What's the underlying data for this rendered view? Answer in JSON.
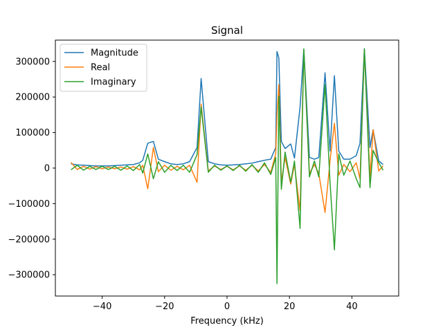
{
  "chart_data": {
    "type": "line",
    "title": "Signal",
    "xlabel": "Frequency (kHz)",
    "ylabel": "",
    "xlim": [
      -55,
      55
    ],
    "ylim": [
      -360000,
      360000
    ],
    "x_ticks": [
      -40,
      -20,
      0,
      20,
      40
    ],
    "y_ticks": [
      -300000,
      -200000,
      -100000,
      0,
      100000,
      200000,
      300000
    ],
    "x_tick_labels": [
      "−40",
      "−20",
      "0",
      "20",
      "40"
    ],
    "y_tick_labels": [
      "−300000",
      "−200000",
      "−100000",
      "0",
      "100000",
      "200000",
      "300000"
    ],
    "grid": false,
    "legend_position": "top-left",
    "series": [
      {
        "name": "Magnitude",
        "color": "#1f77b4",
        "points": [
          [
            -50.0,
            12000
          ],
          [
            -48.0,
            9000
          ],
          [
            -46.0,
            8000
          ],
          [
            -44.0,
            7000
          ],
          [
            -42.0,
            6000
          ],
          [
            -40.0,
            6000
          ],
          [
            -38.0,
            6000
          ],
          [
            -36.0,
            7000
          ],
          [
            -34.0,
            8000
          ],
          [
            -32.0,
            9000
          ],
          [
            -30.0,
            10000
          ],
          [
            -28.0,
            15000
          ],
          [
            -27.0,
            22000
          ],
          [
            -25.4,
            70000
          ],
          [
            -23.6,
            75000
          ],
          [
            -22.0,
            25000
          ],
          [
            -20.0,
            18000
          ],
          [
            -18.0,
            12000
          ],
          [
            -16.0,
            10000
          ],
          [
            -14.0,
            12000
          ],
          [
            -12.0,
            18000
          ],
          [
            -9.6,
            58000
          ],
          [
            -8.3,
            252000
          ],
          [
            -6.0,
            18000
          ],
          [
            -4.0,
            12000
          ],
          [
            -2.0,
            9000
          ],
          [
            0.0,
            8000
          ],
          [
            2.0,
            9000
          ],
          [
            4.0,
            10000
          ],
          [
            6.0,
            12000
          ],
          [
            8.0,
            14000
          ],
          [
            10.0,
            18000
          ],
          [
            12.0,
            22000
          ],
          [
            14.0,
            25000
          ],
          [
            15.6,
            58000
          ],
          [
            16.0,
            328000
          ],
          [
            16.6,
            310000
          ],
          [
            17.4,
            75000
          ],
          [
            18.6,
            55000
          ],
          [
            20.4,
            68000
          ],
          [
            21.6,
            28000
          ],
          [
            23.4,
            172000
          ],
          [
            24.6,
            335000
          ],
          [
            26.4,
            30000
          ],
          [
            28.0,
            25000
          ],
          [
            29.4,
            30000
          ],
          [
            31.4,
            268000
          ],
          [
            33.0,
            48000
          ],
          [
            34.4,
            260000
          ],
          [
            35.8,
            48000
          ],
          [
            37.4,
            25000
          ],
          [
            39.4,
            25000
          ],
          [
            41.4,
            35000
          ],
          [
            42.6,
            70000
          ],
          [
            44.0,
            336000
          ],
          [
            45.8,
            58000
          ],
          [
            46.8,
            108000
          ],
          [
            48.6,
            20000
          ],
          [
            50.0,
            10000
          ]
        ]
      },
      {
        "name": "Real",
        "color": "#ff7f0e",
        "points": [
          [
            -50.0,
            16000
          ],
          [
            -48.0,
            -4000
          ],
          [
            -46.0,
            5000
          ],
          [
            -44.0,
            -3000
          ],
          [
            -42.0,
            4000
          ],
          [
            -40.0,
            -2000
          ],
          [
            -38.0,
            3000
          ],
          [
            -36.0,
            -2000
          ],
          [
            -34.0,
            3000
          ],
          [
            -32.0,
            -3000
          ],
          [
            -30.0,
            4000
          ],
          [
            -28.0,
            -5000
          ],
          [
            -27.0,
            8000
          ],
          [
            -25.4,
            -58000
          ],
          [
            -23.6,
            58000
          ],
          [
            -22.0,
            -10000
          ],
          [
            -20.0,
            8000
          ],
          [
            -18.0,
            -6000
          ],
          [
            -16.0,
            5000
          ],
          [
            -14.0,
            -5000
          ],
          [
            -12.0,
            8000
          ],
          [
            -9.6,
            -40000
          ],
          [
            -8.3,
            180000
          ],
          [
            -6.0,
            -8000
          ],
          [
            -4.0,
            6000
          ],
          [
            -2.0,
            -4000
          ],
          [
            0.0,
            5000
          ],
          [
            2.0,
            -5000
          ],
          [
            4.0,
            6000
          ],
          [
            6.0,
            -6000
          ],
          [
            8.0,
            8000
          ],
          [
            10.0,
            -8000
          ],
          [
            12.0,
            10000
          ],
          [
            14.0,
            -12000
          ],
          [
            15.6,
            40000
          ],
          [
            16.0,
            150000
          ],
          [
            16.6,
            235000
          ],
          [
            17.4,
            -40000
          ],
          [
            18.6,
            30000
          ],
          [
            20.4,
            -45000
          ],
          [
            21.6,
            10000
          ],
          [
            23.4,
            -120000
          ],
          [
            24.6,
            330000
          ],
          [
            26.4,
            -15000
          ],
          [
            28.0,
            10000
          ],
          [
            29.4,
            -15000
          ],
          [
            31.4,
            -125000
          ],
          [
            33.0,
            20000
          ],
          [
            34.4,
            126000
          ],
          [
            35.8,
            -20000
          ],
          [
            37.4,
            10000
          ],
          [
            39.4,
            -10000
          ],
          [
            41.4,
            15000
          ],
          [
            42.6,
            -30000
          ],
          [
            44.0,
            330000
          ],
          [
            45.8,
            -25000
          ],
          [
            46.8,
            108000
          ],
          [
            48.6,
            -8000
          ],
          [
            50.0,
            6000
          ]
        ]
      },
      {
        "name": "Imaginary",
        "color": "#2ca02c",
        "points": [
          [
            -50.0,
            -5000
          ],
          [
            -48.0,
            8000
          ],
          [
            -46.0,
            -6000
          ],
          [
            -44.0,
            5000
          ],
          [
            -42.0,
            -4000
          ],
          [
            -40.0,
            5000
          ],
          [
            -38.0,
            -4000
          ],
          [
            -36.0,
            5000
          ],
          [
            -34.0,
            -6000
          ],
          [
            -32.0,
            6000
          ],
          [
            -30.0,
            -7000
          ],
          [
            -28.0,
            10000
          ],
          [
            -27.0,
            -14000
          ],
          [
            -25.4,
            40000
          ],
          [
            -23.6,
            -30000
          ],
          [
            -22.0,
            18000
          ],
          [
            -20.0,
            -12000
          ],
          [
            -18.0,
            8000
          ],
          [
            -16.0,
            -7000
          ],
          [
            -14.0,
            8000
          ],
          [
            -12.0,
            -12000
          ],
          [
            -9.6,
            38000
          ],
          [
            -8.3,
            172000
          ],
          [
            -6.0,
            -12000
          ],
          [
            -4.0,
            8000
          ],
          [
            -2.0,
            -6000
          ],
          [
            0.0,
            6000
          ],
          [
            2.0,
            -7000
          ],
          [
            4.0,
            8000
          ],
          [
            6.0,
            -9000
          ],
          [
            8.0,
            10000
          ],
          [
            10.0,
            -12000
          ],
          [
            12.0,
            15000
          ],
          [
            14.0,
            -18000
          ],
          [
            15.6,
            30000
          ],
          [
            16.0,
            -325000
          ],
          [
            16.6,
            202000
          ],
          [
            17.4,
            -60000
          ],
          [
            18.6,
            45000
          ],
          [
            20.4,
            -40000
          ],
          [
            21.6,
            20000
          ],
          [
            23.4,
            -170000
          ],
          [
            24.6,
            335000
          ],
          [
            26.4,
            -25000
          ],
          [
            28.0,
            20000
          ],
          [
            29.4,
            -25000
          ],
          [
            31.4,
            235000
          ],
          [
            33.0,
            -40000
          ],
          [
            34.4,
            -230000
          ],
          [
            35.8,
            40000
          ],
          [
            37.4,
            -20000
          ],
          [
            39.4,
            20000
          ],
          [
            41.4,
            -30000
          ],
          [
            42.6,
            -55000
          ],
          [
            44.0,
            335000
          ],
          [
            45.8,
            -55000
          ],
          [
            46.8,
            50000
          ],
          [
            48.6,
            15000
          ],
          [
            50.0,
            -6000
          ]
        ]
      }
    ]
  }
}
